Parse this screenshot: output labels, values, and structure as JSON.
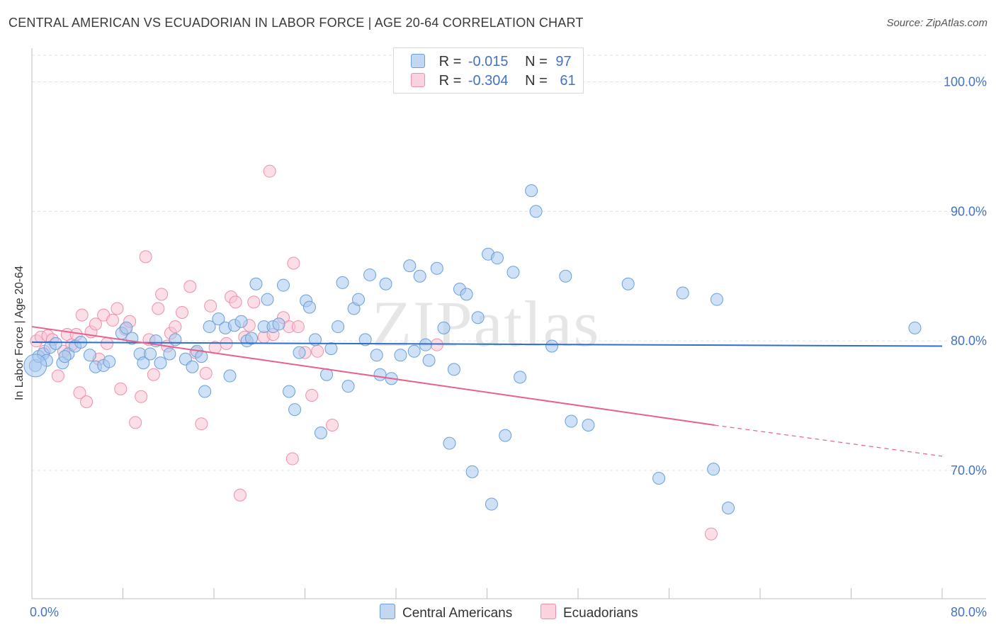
{
  "title": "CENTRAL AMERICAN VS ECUADORIAN IN LABOR FORCE | AGE 20-64 CORRELATION CHART",
  "source": "Source: ZipAtlas.com",
  "watermark": "ZIPatlas",
  "legend": {
    "rows": [
      {
        "r_label": "R =",
        "r_value": "-0.015",
        "n_label": "N =",
        "n_value": "97",
        "color": "#a7c8ee",
        "stroke": "#6a9fd8"
      },
      {
        "r_label": "R =",
        "r_value": "-0.304",
        "n_label": "N =",
        "n_value": "61",
        "color": "#f9c3d2",
        "stroke": "#ee8fab"
      }
    ]
  },
  "series_labels": {
    "a": "Central Americans",
    "b": "Ecuadorians"
  },
  "chart_data": {
    "type": "scatter",
    "title": "CENTRAL AMERICAN VS ECUADORIAN IN LABOR FORCE | AGE 20-64 CORRELATION CHART",
    "xlabel": "",
    "ylabel": "In Labor Force | Age 20-64",
    "xlim": [
      0,
      80
    ],
    "ylim": [
      60.1,
      102.6
    ],
    "x_tick_labels": [
      "0.0%",
      "80.0%"
    ],
    "y_ticks": [
      70,
      80,
      90,
      100
    ],
    "y_tick_labels": [
      "70.0%",
      "80.0%",
      "90.0%",
      "100.0%"
    ],
    "series": [
      {
        "name": "Central Americans",
        "color": "#a7c8ee",
        "stroke": "#6a9fd8",
        "trend": {
          "x": [
            0,
            80
          ],
          "y": [
            79.9,
            79.6
          ],
          "color": "#2f6fc9"
        },
        "points": [
          [
            0.3,
            78.1
          ],
          [
            0.6,
            78.8
          ],
          [
            1.0,
            79.0
          ],
          [
            1.3,
            78.5
          ],
          [
            1.6,
            79.5
          ],
          [
            2.1,
            79.8
          ],
          [
            2.7,
            78.3
          ],
          [
            3.2,
            79.0
          ],
          [
            3.8,
            79.6
          ],
          [
            4.3,
            79.9
          ],
          [
            5.1,
            78.9
          ],
          [
            5.6,
            78.0
          ],
          [
            6.3,
            78.1
          ],
          [
            6.8,
            78.4
          ],
          [
            7.9,
            80.6
          ],
          [
            8.3,
            81.0
          ],
          [
            8.8,
            80.2
          ],
          [
            9.5,
            79.0
          ],
          [
            9.8,
            78.3
          ],
          [
            10.4,
            79.0
          ],
          [
            10.9,
            80.0
          ],
          [
            11.3,
            78.3
          ],
          [
            12.1,
            79.0
          ],
          [
            12.6,
            80.1
          ],
          [
            13.5,
            78.6
          ],
          [
            14.1,
            78.0
          ],
          [
            14.5,
            79.2
          ],
          [
            14.9,
            78.8
          ],
          [
            15.2,
            76.1
          ],
          [
            15.6,
            81.1
          ],
          [
            16.4,
            81.7
          ],
          [
            17.0,
            81.0
          ],
          [
            17.4,
            77.3
          ],
          [
            17.8,
            81.2
          ],
          [
            18.4,
            81.5
          ],
          [
            18.9,
            80.0
          ],
          [
            19.3,
            80.2
          ],
          [
            19.7,
            84.4
          ],
          [
            20.4,
            81.1
          ],
          [
            20.7,
            83.2
          ],
          [
            21.2,
            81.1
          ],
          [
            21.7,
            81.3
          ],
          [
            22.1,
            84.3
          ],
          [
            22.6,
            76.1
          ],
          [
            23.1,
            74.7
          ],
          [
            23.5,
            79.1
          ],
          [
            24.1,
            83.1
          ],
          [
            24.4,
            82.6
          ],
          [
            24.9,
            80.1
          ],
          [
            25.4,
            72.9
          ],
          [
            25.9,
            77.4
          ],
          [
            26.3,
            79.4
          ],
          [
            26.9,
            81.1
          ],
          [
            27.3,
            84.5
          ],
          [
            27.8,
            76.5
          ],
          [
            28.3,
            82.5
          ],
          [
            28.7,
            83.2
          ],
          [
            29.3,
            80.1
          ],
          [
            29.7,
            85.1
          ],
          [
            30.3,
            78.9
          ],
          [
            30.6,
            77.4
          ],
          [
            31.1,
            84.4
          ],
          [
            31.6,
            77.1
          ],
          [
            32.4,
            78.9
          ],
          [
            33.2,
            85.8
          ],
          [
            33.6,
            79.2
          ],
          [
            34.1,
            85.0
          ],
          [
            34.6,
            79.7
          ],
          [
            34.9,
            78.5
          ],
          [
            35.6,
            85.6
          ],
          [
            36.2,
            81.0
          ],
          [
            36.7,
            72.1
          ],
          [
            37.1,
            77.8
          ],
          [
            37.6,
            84.0
          ],
          [
            38.2,
            83.6
          ],
          [
            38.7,
            69.9
          ],
          [
            39.2,
            81.8
          ],
          [
            40.1,
            86.7
          ],
          [
            40.4,
            67.4
          ],
          [
            40.9,
            86.4
          ],
          [
            41.6,
            72.7
          ],
          [
            42.3,
            85.3
          ],
          [
            42.9,
            77.2
          ],
          [
            43.9,
            91.6
          ],
          [
            44.3,
            90.0
          ],
          [
            45.7,
            79.6
          ],
          [
            46.9,
            85.0
          ],
          [
            47.4,
            73.8
          ],
          [
            48.9,
            73.5
          ],
          [
            52.4,
            84.4
          ],
          [
            55.1,
            69.4
          ],
          [
            57.2,
            83.7
          ],
          [
            59.9,
            70.1
          ],
          [
            60.2,
            83.2
          ],
          [
            61.2,
            67.1
          ],
          [
            77.6,
            81.0
          ],
          [
            2.9,
            78.8
          ]
        ]
      },
      {
        "name": "Ecuadorians",
        "color": "#f9c3d2",
        "stroke": "#ee8fab",
        "trend": {
          "x": [
            0,
            60
          ],
          "y": [
            81.1,
            73.5
          ],
          "dash_x": [
            60,
            80
          ],
          "dash_y": [
            73.5,
            71.1
          ],
          "color": "#e8608c"
        },
        "points": [
          [
            0.4,
            80.0
          ],
          [
            0.8,
            80.3
          ],
          [
            1.1,
            79.2
          ],
          [
            1.4,
            80.4
          ],
          [
            1.8,
            80.1
          ],
          [
            2.3,
            77.3
          ],
          [
            2.8,
            79.2
          ],
          [
            3.1,
            80.5
          ],
          [
            3.5,
            79.7
          ],
          [
            3.9,
            80.5
          ],
          [
            4.2,
            76.0
          ],
          [
            4.4,
            82.0
          ],
          [
            4.8,
            75.3
          ],
          [
            5.2,
            80.7
          ],
          [
            5.6,
            81.3
          ],
          [
            5.9,
            78.6
          ],
          [
            6.3,
            82.0
          ],
          [
            6.6,
            79.8
          ],
          [
            7.1,
            81.6
          ],
          [
            7.5,
            82.5
          ],
          [
            7.8,
            76.3
          ],
          [
            8.2,
            80.9
          ],
          [
            8.6,
            81.5
          ],
          [
            9.1,
            73.7
          ],
          [
            9.6,
            75.7
          ],
          [
            10.0,
            86.5
          ],
          [
            10.3,
            80.1
          ],
          [
            10.7,
            77.4
          ],
          [
            11.1,
            82.5
          ],
          [
            11.4,
            83.6
          ],
          [
            11.9,
            79.6
          ],
          [
            12.2,
            80.6
          ],
          [
            12.6,
            81.1
          ],
          [
            13.2,
            82.2
          ],
          [
            13.9,
            84.2
          ],
          [
            14.4,
            79.1
          ],
          [
            14.9,
            73.6
          ],
          [
            15.3,
            77.5
          ],
          [
            15.7,
            82.7
          ],
          [
            16.1,
            79.5
          ],
          [
            17.1,
            79.8
          ],
          [
            17.5,
            83.4
          ],
          [
            17.9,
            83.0
          ],
          [
            18.3,
            68.1
          ],
          [
            18.7,
            80.3
          ],
          [
            19.1,
            81.2
          ],
          [
            19.5,
            83.0
          ],
          [
            20.4,
            80.3
          ],
          [
            20.9,
            93.1
          ],
          [
            21.2,
            80.5
          ],
          [
            22.1,
            81.8
          ],
          [
            22.6,
            81.1
          ],
          [
            23.0,
            86.0
          ],
          [
            23.4,
            81.1
          ],
          [
            24.0,
            79.1
          ],
          [
            24.6,
            75.8
          ],
          [
            25.1,
            79.2
          ],
          [
            26.4,
            73.5
          ],
          [
            35.6,
            79.7
          ],
          [
            59.7,
            65.1
          ],
          [
            22.9,
            70.9
          ]
        ]
      }
    ]
  }
}
